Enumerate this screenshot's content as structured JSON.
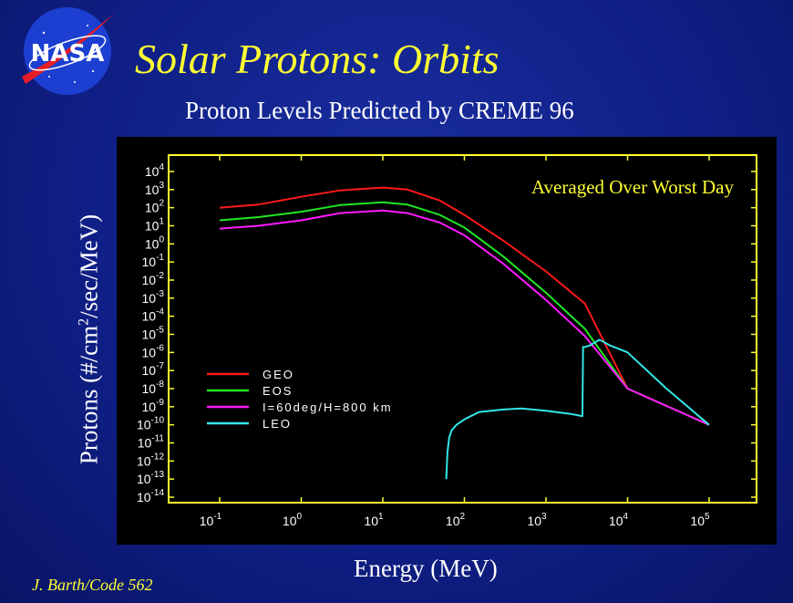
{
  "logo_text": "NASA",
  "title": "Solar Protons: Orbits",
  "subtitle": "Proton Levels Predicted by  CREME 96",
  "credit": "J. Barth/Code 562",
  "chart_data": {
    "type": "line",
    "xlabel": "Energy (MeV)",
    "ylabel_parts": [
      "Protons (#/cm",
      "2",
      "/sec/MeV)"
    ],
    "annotation": "Averaged Over Worst Day",
    "x_scale": "log",
    "y_scale": "log",
    "xlim": [
      0.1,
      100000
    ],
    "ylim": [
      1e-14,
      10000
    ],
    "x_tick_exponents": [
      -1,
      0,
      1,
      2,
      3,
      4,
      5
    ],
    "y_tick_exponents": [
      4,
      3,
      2,
      1,
      0,
      -1,
      -2,
      -3,
      -4,
      -5,
      -6,
      -7,
      -8,
      -9,
      -10,
      -11,
      -12,
      -13,
      -14
    ],
    "grid": false,
    "legend_position": "left-middle",
    "series": [
      {
        "name": "GEO",
        "color": "#ff1a1a",
        "x": [
          0.1,
          0.3,
          1,
          3,
          10,
          20,
          50,
          100,
          300,
          1000,
          3000,
          10000,
          100000
        ],
        "y": [
          100,
          150,
          400,
          900,
          1300,
          1000,
          250,
          40,
          1.5,
          0.03,
          0.0005,
          1e-08,
          1e-10
        ]
      },
      {
        "name": "EOS",
        "color": "#22e622",
        "x": [
          0.1,
          0.3,
          1,
          3,
          10,
          20,
          50,
          100,
          300,
          1000,
          3000,
          10000,
          100000
        ],
        "y": [
          20,
          30,
          60,
          140,
          200,
          150,
          40,
          8,
          0.2,
          0.002,
          2e-05,
          1e-08,
          1e-10
        ]
      },
      {
        "name": "I=60deg/H=800 km",
        "color": "#ff1aff",
        "x": [
          0.1,
          0.3,
          1,
          3,
          10,
          20,
          50,
          100,
          300,
          1000,
          3000,
          10000,
          100000
        ],
        "y": [
          7,
          10,
          20,
          50,
          70,
          50,
          15,
          3,
          0.08,
          0.0008,
          8e-06,
          1e-08,
          1e-10
        ]
      },
      {
        "name": "LEO",
        "color": "#33e6e6",
        "x": [
          60,
          62,
          65,
          70,
          80,
          100,
          150,
          300,
          500,
          1000,
          2000,
          2800,
          2850,
          3000,
          3500,
          4500,
          5000,
          6000,
          8000,
          10000,
          30000,
          100000
        ],
        "y": [
          1e-13,
          3e-12,
          2e-11,
          5e-11,
          1e-10,
          2e-10,
          5e-10,
          7e-10,
          8e-10,
          6e-10,
          4e-10,
          3e-10,
          2e-06,
          2e-06,
          2.5e-06,
          5e-06,
          4e-06,
          2.5e-06,
          1.5e-06,
          1e-06,
          1e-08,
          1e-10
        ]
      }
    ]
  }
}
